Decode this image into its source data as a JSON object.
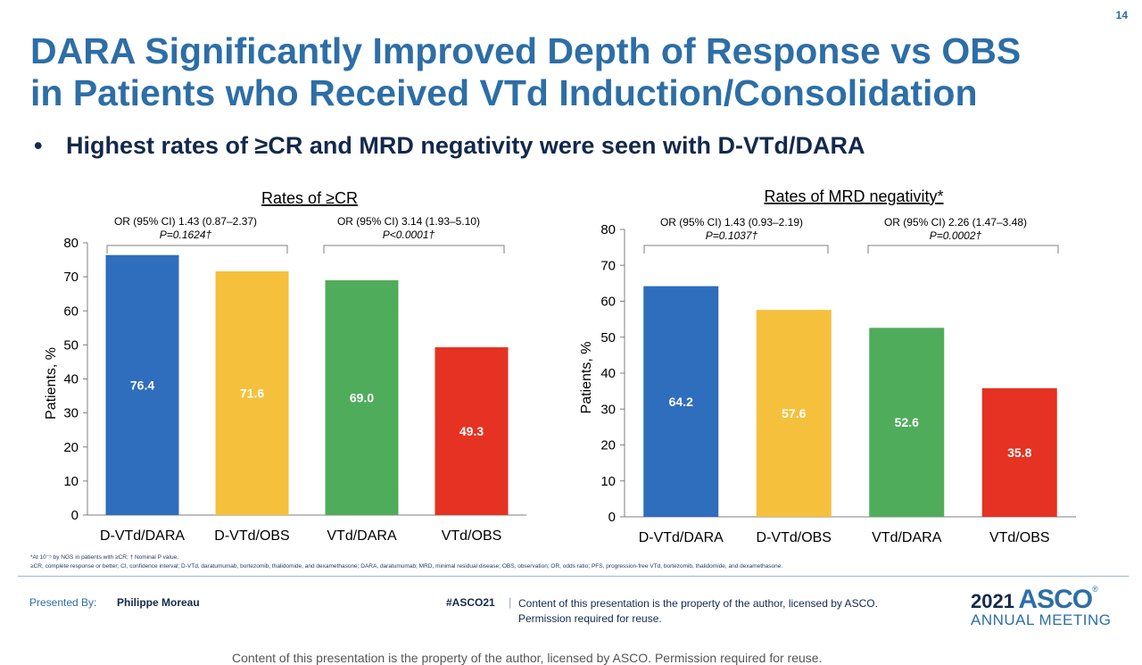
{
  "slide_number": "14",
  "title_lines": [
    "DARA Significantly Improved Depth of Response vs OBS",
    "in Patients who Received VTd Induction/Consolidation"
  ],
  "bullet": "Highest rates of ≥CR and MRD negativity were seen with D-VTd/DARA",
  "bullet_marker": "•",
  "chart_data": [
    {
      "type": "bar",
      "title": "Rates of ≥CR",
      "xlabel": "",
      "ylabel": "Patients, %",
      "ylim": [
        0,
        80
      ],
      "yticks": [
        0,
        10,
        20,
        30,
        40,
        50,
        60,
        70,
        80
      ],
      "categories": [
        "D-VTd/DARA",
        "D-VTd/OBS",
        "VTd/DARA",
        "VTd/OBS"
      ],
      "values": [
        76.4,
        71.6,
        69.0,
        49.3
      ],
      "value_labels": [
        "76.4",
        "71.6",
        "69.0",
        "49.3"
      ],
      "colors": [
        "#2f6dbd",
        "#f5c03c",
        "#4fac5b",
        "#e53222"
      ],
      "annotations": [
        {
          "or_text": "OR (95% CI) 1.43 (0.87–2.37)",
          "p_text": "P=0.1624†",
          "span": [
            0,
            1
          ]
        },
        {
          "or_text": "OR (95% CI) 3.14 (1.93–5.10)",
          "p_text": "P<0.0001†",
          "span": [
            2,
            3
          ]
        }
      ]
    },
    {
      "type": "bar",
      "title": "Rates of MRD negativity*",
      "xlabel": "",
      "ylabel": "Patients, %",
      "ylim": [
        0,
        80
      ],
      "yticks": [
        0,
        10,
        20,
        30,
        40,
        50,
        60,
        70,
        80
      ],
      "categories": [
        "D-VTd/DARA",
        "D-VTd/OBS",
        "VTd/DARA",
        "VTd/OBS"
      ],
      "values": [
        64.2,
        57.6,
        52.6,
        35.8
      ],
      "value_labels": [
        "64.2",
        "57.6",
        "52.6",
        "35.8"
      ],
      "colors": [
        "#2f6dbd",
        "#f5c03c",
        "#4fac5b",
        "#e53222"
      ],
      "annotations": [
        {
          "or_text": "OR (95% CI) 1.43 (0.93–2.19)",
          "p_text": "P=0.1037†",
          "span": [
            0,
            1
          ]
        },
        {
          "or_text": "OR (95% CI) 2.26 (1.47–3.48)",
          "p_text": "P=0.0002†",
          "span": [
            2,
            3
          ]
        }
      ]
    }
  ],
  "footnotes": [
    "*At 10⁻⁵ by NGS in patients with ≥CR; † Nominal P value.",
    "≥CR, complete response or better; CI, confidence interval; D-VTd, daratumumab, bortezomib, thalidomide, and dexamethasone; DARA, daratumumab; MRD, minimal residual disease; OBS, observation; OR, odds ratio; PFS, progression-free VTd, bortezomib, thalidomide, and dexamethasone."
  ],
  "footer": {
    "presented_by_label": "Presented By:",
    "presenter": "Philippe Moreau",
    "hashtag": "#ASCO21",
    "separator": "|",
    "copyright_line1": "Content of this presentation is the property of the author, licensed by ASCO.",
    "copyright_line2": "Permission required for reuse.",
    "logo_year": "2021",
    "logo_brand": "ASCO",
    "logo_reg": "®",
    "logo_meeting": "ANNUAL MEETING",
    "bottom_caption": "Content of this presentation is the property of the author, licensed by ASCO. Permission required for reuse."
  }
}
